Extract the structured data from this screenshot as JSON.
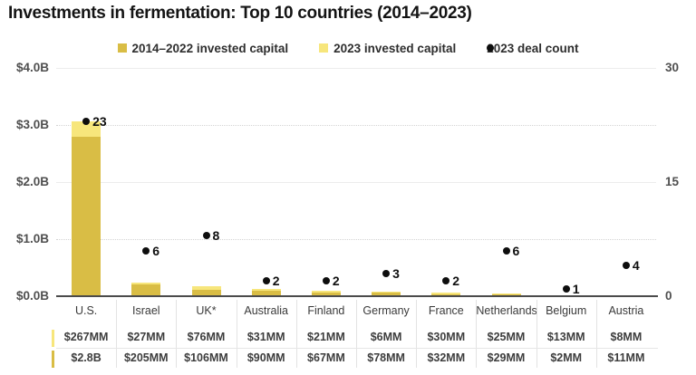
{
  "title": "Investments in fermentation: Top 10 countries (2014–2023)",
  "colors": {
    "capital_2014_2022": "#d9bd45",
    "capital_2023": "#f7e67c",
    "deal_count_dot": "#0d0d0d",
    "axis_line": "#4b4b4b"
  },
  "legend": {
    "items": [
      {
        "label": "2014–2022 invested capital",
        "swatch": "square-dark-gold"
      },
      {
        "label": "2023 invested capital",
        "swatch": "square-light-yellow"
      },
      {
        "label": "2023 deal count",
        "swatch": "black-dot"
      }
    ]
  },
  "left_axis": {
    "ticks": [
      "$4.0B",
      "$3.0B",
      "$2.0B",
      "$1.0B",
      "$0.0B"
    ],
    "range_billions": [
      0,
      4
    ]
  },
  "right_axis": {
    "ticks": [
      "30",
      "15",
      "0"
    ],
    "range": [
      0,
      30
    ]
  },
  "chart_data": {
    "type": "bar",
    "subtype": "stacked-bars-with-dot-overlay",
    "title": "Investments in fermentation: Top 10 countries (2014–2023)",
    "categories": [
      "U.S.",
      "Israel",
      "UK*",
      "Australia",
      "Finland",
      "Germany",
      "France",
      "Netherlands",
      "Belgium",
      "Austria"
    ],
    "series": [
      {
        "name": "2014–2022 invested capital",
        "axis": "left",
        "unit": "USD billions",
        "values": [
          2.8,
          0.205,
          0.106,
          0.09,
          0.067,
          0.078,
          0.032,
          0.029,
          0.002,
          0.011
        ],
        "labels": [
          "$2.8B",
          "$205MM",
          "$106MM",
          "$90MM",
          "$67MM",
          "$78MM",
          "$32MM",
          "$29MM",
          "$2MM",
          "$11MM"
        ]
      },
      {
        "name": "2023 invested capital",
        "axis": "left",
        "unit": "USD billions",
        "values": [
          0.267,
          0.027,
          0.076,
          0.031,
          0.021,
          0.006,
          0.03,
          0.025,
          0.013,
          0.008
        ],
        "labels": [
          "$267MM",
          "$27MM",
          "$76MM",
          "$31MM",
          "$21MM",
          "$6MM",
          "$30MM",
          "$25MM",
          "$13MM",
          "$8MM"
        ]
      },
      {
        "name": "2023 deal count",
        "axis": "right",
        "unit": "deals",
        "values": [
          23,
          6,
          8,
          2,
          2,
          3,
          2,
          6,
          1,
          4
        ]
      }
    ],
    "ylim_left": [
      0,
      4.0
    ],
    "ylim_right": [
      0,
      30
    ],
    "gridlines": "horizontal, solid at $4.0B/$2.0B, dotted at $3.0B/$1.0B",
    "legend_position": "top-center"
  },
  "table": {
    "rows": [
      {
        "series": "2023 invested capital",
        "marker": "light-yellow",
        "values": [
          "$267MM",
          "$27MM",
          "$76MM",
          "$31MM",
          "$21MM",
          "$6MM",
          "$30MM",
          "$25MM",
          "$13MM",
          "$8MM"
        ]
      },
      {
        "series": "2014–2022 invested capital",
        "marker": "dark-gold",
        "values": [
          "$2.8B",
          "$205MM",
          "$106MM",
          "$90MM",
          "$67MM",
          "$78MM",
          "$32MM",
          "$29MM",
          "$2MM",
          "$11MM"
        ]
      }
    ]
  }
}
